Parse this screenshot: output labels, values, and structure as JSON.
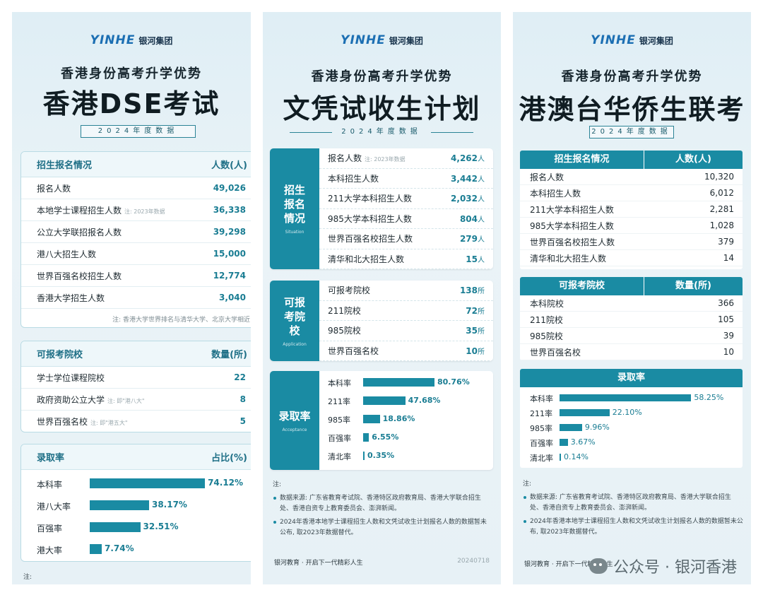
{
  "logo": {
    "mark": "YINHE",
    "name": "银河集团"
  },
  "panel1": {
    "subtitle": "香港身份高考升学优势",
    "title": "香港DSE考试",
    "year": "2024年度数据",
    "enroll": {
      "header": "招生报名情况",
      "header_col": "人数(人)",
      "rows": [
        {
          "label": "报名人数",
          "note": "",
          "value": "49,026"
        },
        {
          "label": "本地学士课程招生人数",
          "note": "注: 2023年数据",
          "value": "36,338"
        },
        {
          "label": "公立大学联招报名人数",
          "note": "",
          "value": "39,298"
        },
        {
          "label": "港八大招生人数",
          "note": "",
          "value": "15,000"
        },
        {
          "label": "世界百强名校招生人数",
          "note": "",
          "value": "12,774"
        },
        {
          "label": "香港大学招生人数",
          "note": "",
          "value": "3,040"
        }
      ],
      "footnote": "注: 香港大学世界排名与清华大学、北京大学相近"
    },
    "schools": {
      "header": "可报考院校",
      "header_col": "数量(所)",
      "rows": [
        {
          "label": "学士学位课程院校",
          "note": "",
          "value": "22"
        },
        {
          "label": "政府资助公立大学",
          "note": "注: 即\"港八大\"",
          "value": "8"
        },
        {
          "label": "世界百强名校",
          "note": "注: 即\"港五大\"",
          "value": "5"
        }
      ]
    },
    "admission": {
      "header": "录取率",
      "header_col": "占比(%)",
      "rows": [
        {
          "label": "本科率",
          "pct": 74.12,
          "text": "74.12%"
        },
        {
          "label": "港八大率",
          "pct": 38.17,
          "text": "38.17%"
        },
        {
          "label": "百强率",
          "pct": 32.51,
          "text": "32.51%"
        },
        {
          "label": "港大率",
          "pct": 7.74,
          "text": "7.74%"
        }
      ]
    },
    "note_label": "注:"
  },
  "panel2": {
    "subtitle": "香港身份高考升学优势",
    "title": "文凭试收生计划",
    "year": "2024年度数据",
    "enroll": {
      "side": "招生报名情况",
      "side_en": "Situation",
      "rows": [
        {
          "label": "报名人数",
          "note": "注: 2023年数据",
          "value": "4,262",
          "unit": "人"
        },
        {
          "label": "本科招生人数",
          "note": "",
          "value": "3,442",
          "unit": "人"
        },
        {
          "label": "211大学本科招生人数",
          "note": "",
          "value": "2,032",
          "unit": "人"
        },
        {
          "label": "985大学本科招生人数",
          "note": "",
          "value": "804",
          "unit": "人"
        },
        {
          "label": "世界百强名校招生人数",
          "note": "",
          "value": "279",
          "unit": "人"
        },
        {
          "label": "清华和北大招生人数",
          "note": "",
          "value": "15",
          "unit": "人"
        }
      ]
    },
    "schools": {
      "side": "可报考院校",
      "side_en": "Application",
      "rows": [
        {
          "label": "可报考院校",
          "value": "138",
          "unit": "所"
        },
        {
          "label": "211院校",
          "value": "72",
          "unit": "所"
        },
        {
          "label": "985院校",
          "value": "35",
          "unit": "所"
        },
        {
          "label": "世界百强名校",
          "value": "10",
          "unit": "所"
        }
      ]
    },
    "admission": {
      "side": "录取率",
      "side_en": "Acceptance",
      "rows": [
        {
          "label": "本科率",
          "pct": 80.76,
          "text": "80.76%"
        },
        {
          "label": "211率",
          "pct": 47.68,
          "text": "47.68%"
        },
        {
          "label": "985率",
          "pct": 18.86,
          "text": "18.86%"
        },
        {
          "label": "百强率",
          "pct": 6.55,
          "text": "6.55%"
        },
        {
          "label": "清北率",
          "pct": 0.35,
          "text": "0.35%"
        }
      ]
    },
    "notes": {
      "head": "注:",
      "items": [
        "数据来源: 广东省教育考试院、香港特区政府教育局、香港大学联合招生处、香港自资专上教育委员会、澎湃新闻。",
        "2024年香港本地学士课程招生人数和文凭试收生计划报名人数的数据暂未公布, 取2023年数据替代。"
      ]
    },
    "footer": {
      "text": "银河教育 · 开启下一代精彩人生",
      "date": "20240718"
    }
  },
  "panel3": {
    "subtitle": "香港身份高考升学优势",
    "title": "港澳台华侨生联考",
    "year": "2024年度数据",
    "enroll": {
      "header": "招生报名情况",
      "header_col": "人数(人)",
      "rows": [
        {
          "label": "报名人数",
          "value": "10,320"
        },
        {
          "label": "本科招生人数",
          "value": "6,012"
        },
        {
          "label": "211大学本科招生人数",
          "value": "2,281"
        },
        {
          "label": "985大学本科招生人数",
          "value": "1,028"
        },
        {
          "label": "世界百强名校招生人数",
          "value": "379"
        },
        {
          "label": "清华和北大招生人数",
          "value": "14"
        }
      ]
    },
    "schools": {
      "header": "可报考院校",
      "header_col": "数量(所)",
      "rows": [
        {
          "label": "本科院校",
          "value": "366"
        },
        {
          "label": "211院校",
          "value": "105"
        },
        {
          "label": "985院校",
          "value": "39"
        },
        {
          "label": "世界百强名校",
          "value": "10"
        }
      ]
    },
    "admission": {
      "header": "录取率",
      "rows": [
        {
          "label": "本科率",
          "pct": 58.25,
          "text": "58.25%"
        },
        {
          "label": "211率",
          "pct": 22.1,
          "text": "22.10%"
        },
        {
          "label": "985率",
          "pct": 9.96,
          "text": "9.96%"
        },
        {
          "label": "百强率",
          "pct": 3.67,
          "text": "3.67%"
        },
        {
          "label": "清北率",
          "pct": 0.14,
          "text": "0.14%"
        }
      ]
    },
    "notes": {
      "head": "注:",
      "items": [
        "数据来源: 广东省教育考试院、香港特区政府教育局、香港大学联合招生处、香港自资专上教育委员会、澎湃新闻。",
        "2024年香港本地学士课程招生人数和文凭试收生计划报名人数的数据暂未公布, 取2023年数据替代。"
      ]
    },
    "footer": {
      "text": "银河教育 · 开启下一代精彩人生"
    },
    "watermark": "公众号 · 银河香港"
  }
}
